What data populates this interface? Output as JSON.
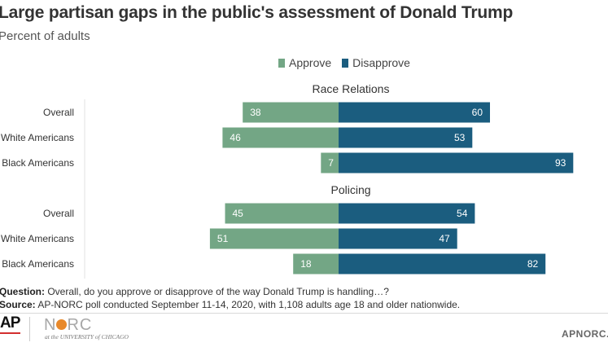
{
  "title": "Large partisan gaps in the public's assessment of Donald Trump",
  "subtitle": "Percent of adults",
  "legend": {
    "approve": "Approve",
    "disapprove": "Disapprove"
  },
  "colors": {
    "approve": "#73a685",
    "disapprove": "#1b5d7f"
  },
  "chart_data": {
    "type": "bar",
    "orientation": "diverging-horizontal",
    "groups": [
      {
        "title": "Race Relations",
        "categories": [
          "Overall",
          "White Americans",
          "Black Americans"
        ],
        "series": [
          {
            "name": "Approve",
            "values": [
              38,
              46,
              7
            ]
          },
          {
            "name": "Disapprove",
            "values": [
              60,
              53,
              93
            ]
          }
        ]
      },
      {
        "title": "Policing",
        "categories": [
          "Overall",
          "White Americans",
          "Black Americans"
        ],
        "series": [
          {
            "name": "Approve",
            "values": [
              45,
              51,
              18
            ]
          },
          {
            "name": "Disapprove",
            "values": [
              54,
              47,
              82
            ]
          }
        ]
      }
    ],
    "legend_position": "top-center",
    "grid": false
  },
  "footer": {
    "question_label": "Question:",
    "question_text": " Overall, do you approve or disapprove of the way Donald Trump is handling…?",
    "source_label": "Source:",
    "source_text": " AP-NORC poll conducted September 11-14, 2020, with 1,108 adults age 18 and older nationwide."
  },
  "branding": {
    "ap_logo": "AP",
    "norc_left": "N",
    "norc_right": "RC",
    "norc_sub": "at the UNIVERSITY of CHICAGO",
    "site": "APNORC.org"
  }
}
